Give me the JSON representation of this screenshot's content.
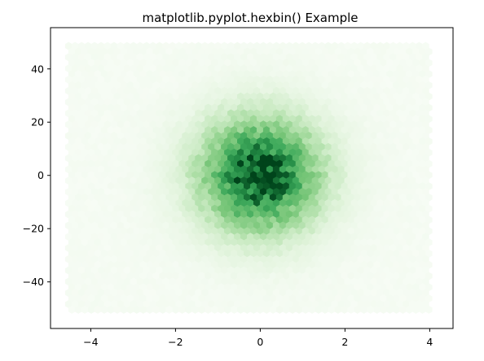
{
  "chart_data": {
    "type": "heatmap",
    "subtype": "hexbin",
    "title": "matplotlib.pyplot.hexbin() Example",
    "xlabel": "",
    "ylabel": "",
    "xlim": [
      -4.95,
      4.55
    ],
    "ylim": [
      -57.5,
      55.5
    ],
    "xticks": [
      -4,
      -2,
      0,
      2,
      4
    ],
    "xtick_labels": [
      "−4",
      "−2",
      "0",
      "2",
      "4"
    ],
    "yticks": [
      40,
      20,
      0,
      -20,
      -40
    ],
    "ytick_labels": [
      "40",
      "20",
      "0",
      "−20",
      "−40"
    ],
    "data_extent": {
      "x": [
        -4.6,
        4.1
      ],
      "y": [
        -52,
        50
      ]
    },
    "distribution": {
      "kind": "bivariate-normal",
      "x_mean": 0.0,
      "x_std": 1.0,
      "y_mean": 0.0,
      "y_std": 15.0
    },
    "colormap": "Greens",
    "colors": {
      "low": "#f7fcf5",
      "mid": "#74c476",
      "high": "#00441b"
    },
    "grid": false,
    "legend": "none",
    "colorbar": false
  }
}
